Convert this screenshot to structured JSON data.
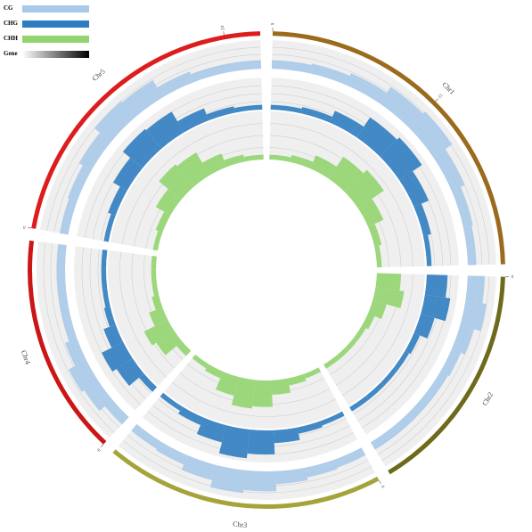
{
  "chart_data": {
    "type": "circos",
    "chromosomes": [
      {
        "name": "Chr1",
        "length": 30,
        "color": "#9a6b1c",
        "ticks": [
          0,
          15
        ]
      },
      {
        "name": "Chr2",
        "length": 19.7,
        "color": "#6e6a1c",
        "ticks": [
          0
        ]
      },
      {
        "name": "Chr3",
        "length": 23.5,
        "color": "#a5a43a",
        "ticks": [
          0
        ]
      },
      {
        "name": "Chr4",
        "length": 18.6,
        "color": "#cc1515",
        "ticks": [
          0
        ]
      },
      {
        "name": "Chr5",
        "length": 27,
        "color": "#dd1d1d",
        "ticks": [
          0,
          24
        ]
      }
    ],
    "tracks": [
      {
        "name": "CG",
        "color": "#a8c9e8",
        "values": [
          [
            0.3,
            0.35,
            0.45,
            0.7,
            0.8,
            0.5,
            0.35,
            0.3
          ],
          [
            0.6,
            0.75,
            0.5,
            0.35,
            0.3,
            0.3,
            0.3,
            0.3
          ],
          [
            0.3,
            0.35,
            0.45,
            0.7,
            0.8,
            0.55,
            0.35,
            0.3
          ],
          [
            0.35,
            0.6,
            0.7,
            0.45,
            0.3,
            0.3,
            0.3,
            0.3
          ],
          [
            0.3,
            0.35,
            0.5,
            0.75,
            0.7,
            0.4,
            0.3,
            0.3
          ]
        ]
      },
      {
        "name": "CHG",
        "color": "#2f7dc1",
        "values": [
          [
            0.15,
            0.2,
            0.4,
            0.75,
            0.85,
            0.5,
            0.25,
            0.15
          ],
          [
            0.65,
            0.8,
            0.45,
            0.2,
            0.15,
            0.15,
            0.15,
            0.15
          ],
          [
            0.15,
            0.2,
            0.4,
            0.75,
            0.9,
            0.55,
            0.25,
            0.15
          ],
          [
            0.2,
            0.6,
            0.75,
            0.4,
            0.2,
            0.15,
            0.15,
            0.15
          ],
          [
            0.15,
            0.25,
            0.5,
            0.8,
            0.75,
            0.4,
            0.2,
            0.15
          ]
        ]
      },
      {
        "name": "CHH",
        "color": "#92d46f",
        "values": [
          [
            0.1,
            0.15,
            0.3,
            0.55,
            0.65,
            0.35,
            0.15,
            0.1
          ],
          [
            0.5,
            0.6,
            0.3,
            0.15,
            0.1,
            0.1,
            0.1,
            0.1
          ],
          [
            0.1,
            0.15,
            0.3,
            0.55,
            0.6,
            0.4,
            0.15,
            0.1
          ],
          [
            0.15,
            0.45,
            0.55,
            0.3,
            0.15,
            0.1,
            0.1,
            0.1
          ],
          [
            0.1,
            0.15,
            0.35,
            0.6,
            0.55,
            0.3,
            0.15,
            0.1
          ]
        ]
      },
      {
        "name": "Gene",
        "colors": [
          "#ffffff",
          "#000000"
        ]
      }
    ],
    "ylim": [
      0,
      1
    ]
  }
}
